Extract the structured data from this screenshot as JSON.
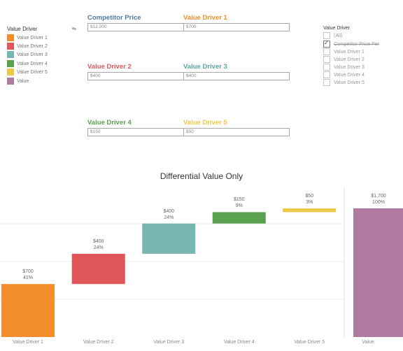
{
  "legend": {
    "title": "Value Driver",
    "items": [
      {
        "label": "Value Driver 1",
        "color": "#F28E2B"
      },
      {
        "label": "Value Driver 2",
        "color": "#E15759"
      },
      {
        "label": "Value Driver 3",
        "color": "#76B7B2"
      },
      {
        "label": "Value Driver 4",
        "color": "#59A14F"
      },
      {
        "label": "Value Driver 5",
        "color": "#EDC948"
      },
      {
        "label": "Value",
        "color": "#B07AA1"
      }
    ]
  },
  "params": [
    {
      "label": "Competitor Price",
      "value": "$12,000",
      "color": "#4E79A7"
    },
    {
      "label": "Value Driver 1",
      "value": "$700",
      "color": "#F28E2B"
    },
    {
      "label": "Value Driver 2",
      "value": "$400",
      "color": "#E15759"
    },
    {
      "label": "Value Driver 3",
      "value": "$400",
      "color": "#59A5A0"
    },
    {
      "label": "Value Driver 4",
      "value": "$150",
      "color": "#59A14F"
    },
    {
      "label": "Value Driver 5",
      "value": "$50",
      "color": "#EDC948"
    }
  ],
  "filter": {
    "title": "Value Driver",
    "items": [
      {
        "label": "(All)",
        "checked": false
      },
      {
        "label": "Competitor Price Per",
        "checked": true,
        "strike": true
      },
      {
        "label": "Value Driver 1",
        "checked": false
      },
      {
        "label": "Value Driver 2",
        "checked": false
      },
      {
        "label": "Value Driver 3",
        "checked": false
      },
      {
        "label": "Value Driver 4",
        "checked": false
      },
      {
        "label": "Value Driver 5",
        "checked": false
      }
    ]
  },
  "chart_data": {
    "type": "bar",
    "title": "Differential Value Only",
    "categories": [
      "Value Driver 1",
      "Value Driver 2",
      "Value Driver 3",
      "Value Driver 4",
      "Value Driver 5",
      "Value"
    ],
    "values": [
      700,
      400,
      400,
      150,
      50,
      1700
    ],
    "value_labels": [
      "$700",
      "$400",
      "$400",
      "$150",
      "$50",
      "$1,700"
    ],
    "pct_labels": [
      "41%",
      "24%",
      "24%",
      "9%",
      "3%",
      "100%"
    ],
    "colors": [
      "#F28E2B",
      "#E15759",
      "#76B7B2",
      "#59A14F",
      "#EDC948",
      "#B07AA1"
    ],
    "waterfall": true,
    "ylim": [
      0,
      1700
    ],
    "grid": true
  }
}
